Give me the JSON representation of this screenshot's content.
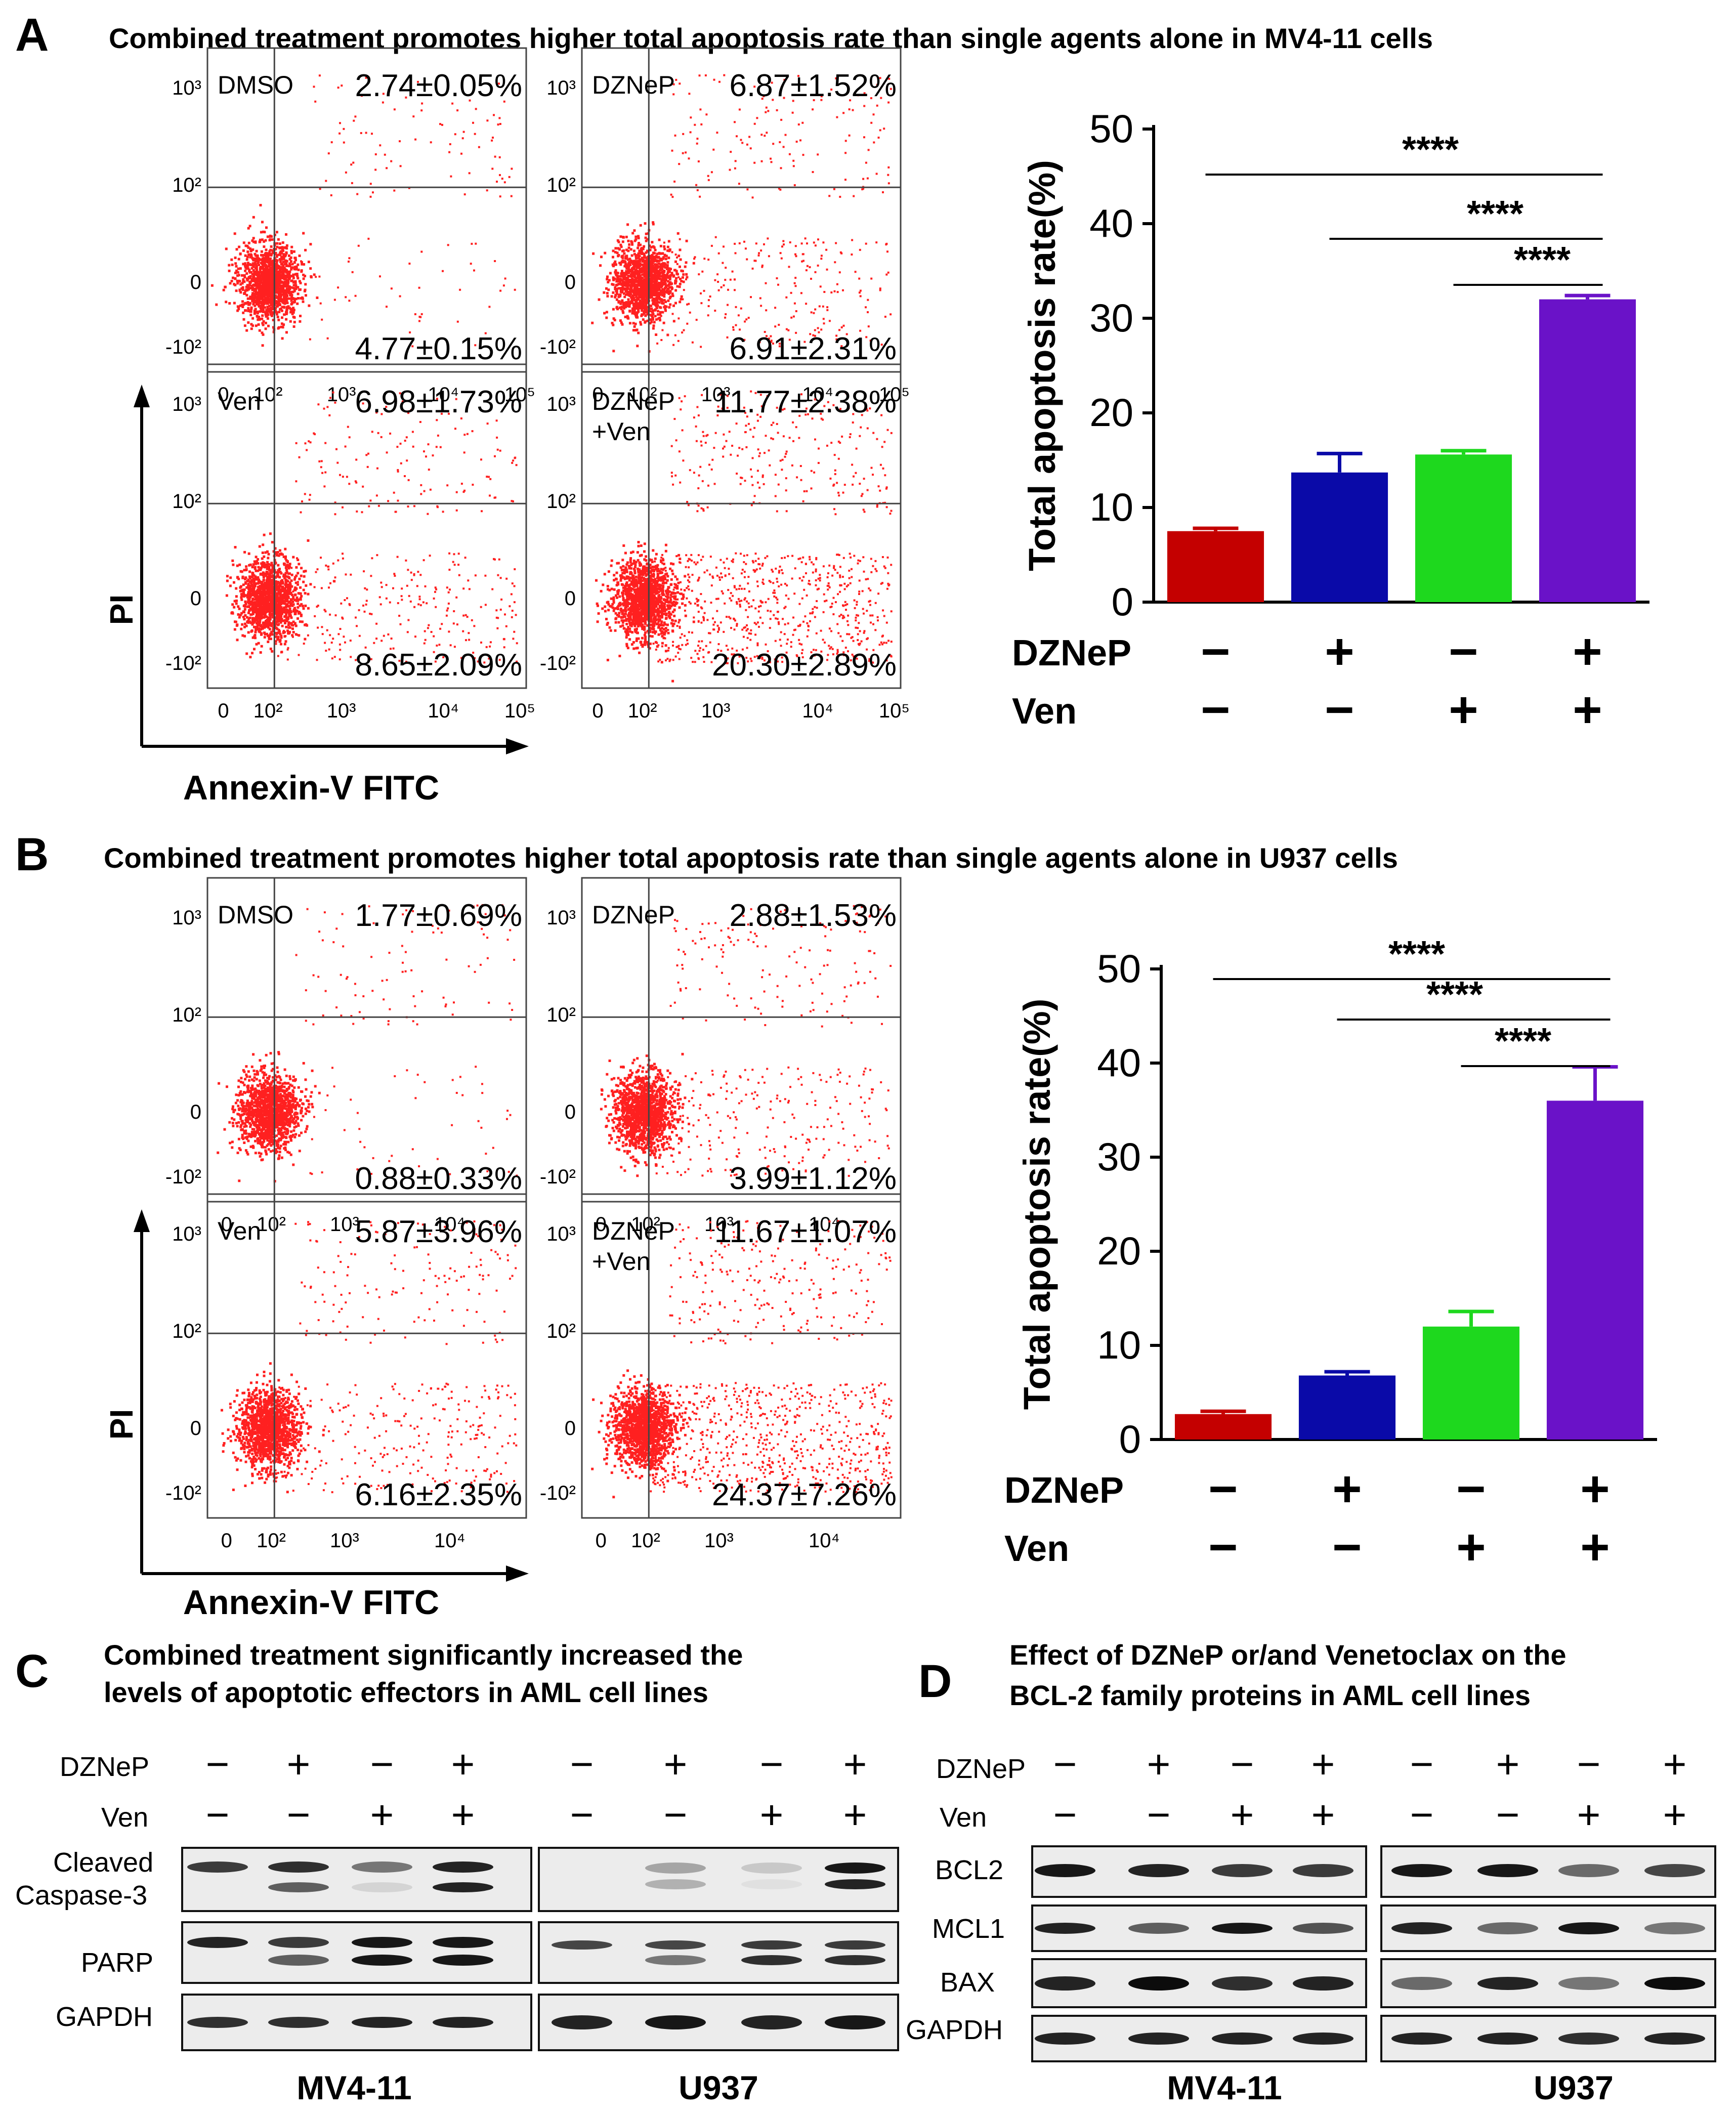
{
  "panel_a": {
    "letter": "A",
    "title": "Combined treatment promotes higher total apoptosis rate than single agents alone in MV4-11 cells",
    "flow": {
      "y_axis_label": "PI",
      "x_axis_label": "Annexin-V FITC",
      "y_ticks": [
        "10³",
        "10²",
        "0",
        "-10²"
      ],
      "x_ticks": [
        "0",
        "10²",
        "10³",
        "10⁴",
        "10⁵"
      ],
      "plots": [
        {
          "label": "DMSO",
          "label2": "",
          "upper_right": "2.74±0.05%",
          "lower_right": "4.77±0.15%"
        },
        {
          "label": "DZNeP",
          "label2": "",
          "upper_right": "6.87±1.52%",
          "lower_right": "6.91±2.31%"
        },
        {
          "label": "Ven",
          "label2": "",
          "upper_right": "6.98±1.73%",
          "lower_right": "8.65±2.09%"
        },
        {
          "label": "DZNeP",
          "label2": "+Ven",
          "upper_right": "11.77±2.38%",
          "lower_right": "20.30±2.89%"
        }
      ]
    }
  },
  "panel_b": {
    "letter": "B",
    "title": "Combined treatment promotes higher total apoptosis rate than single agents alone in U937 cells",
    "flow": {
      "y_axis_label": "PI",
      "x_axis_label": "Annexin-V FITC",
      "y_ticks": [
        "10³",
        "10²",
        "0",
        "-10²"
      ],
      "x_ticks": [
        "0",
        "10²",
        "10³",
        "10⁴"
      ],
      "plots": [
        {
          "label": "DMSO",
          "label2": "",
          "upper_right": "1.77±0.69%",
          "lower_right": "0.88±0.33%"
        },
        {
          "label": "DZNeP",
          "label2": "",
          "upper_right": "2.88±1.53%",
          "lower_right": "3.99±1.12%"
        },
        {
          "label": "Ven",
          "label2": "",
          "upper_right": "5.87±3.96%",
          "lower_right": "6.16±2.35%"
        },
        {
          "label": "DZNeP",
          "label2": "+Ven",
          "upper_right": "11.67±1.07%",
          "lower_right": "24.37±7.26%"
        }
      ]
    }
  },
  "chart_data": [
    {
      "type": "bar",
      "title": "",
      "ylabel": "Total apoptosis rate(%)",
      "ylim": [
        0,
        50
      ],
      "yticks": [
        "0",
        "10",
        "20",
        "30",
        "40",
        "50"
      ],
      "categories": [
        "DMSO",
        "DZNeP",
        "Ven",
        "DZNeP+Ven"
      ],
      "values": [
        7.5,
        13.7,
        15.6,
        32.0
      ],
      "errors": [
        0.3,
        2.0,
        0.4,
        0.4
      ],
      "colors": [
        "#c40000",
        "#0a0aa8",
        "#1ed81e",
        "#6a12c8"
      ],
      "significance": [
        "****",
        "****",
        "****"
      ],
      "treatment_rows": [
        {
          "label": "DZNeP",
          "signs": [
            "−",
            "+",
            "−",
            "+"
          ]
        },
        {
          "label": "Ven",
          "signs": [
            "−",
            "−",
            "+",
            "+"
          ]
        }
      ]
    },
    {
      "type": "bar",
      "title": "",
      "ylabel": "Total apoptosis rate(%)",
      "ylim": [
        0,
        50
      ],
      "yticks": [
        "0",
        "10",
        "20",
        "30",
        "40",
        "50"
      ],
      "categories": [
        "DMSO",
        "DZNeP",
        "Ven",
        "DZNeP+Ven"
      ],
      "values": [
        2.7,
        6.8,
        12.0,
        36.0
      ],
      "errors": [
        0.3,
        0.4,
        1.6,
        3.6
      ],
      "colors": [
        "#c40000",
        "#0a0aa8",
        "#1ed81e",
        "#6a12c8"
      ],
      "significance": [
        "****",
        "****",
        "****"
      ],
      "treatment_rows": [
        {
          "label": "DZNeP",
          "signs": [
            "−",
            "+",
            "−",
            "+"
          ]
        },
        {
          "label": "Ven",
          "signs": [
            "−",
            "−",
            "+",
            "+"
          ]
        }
      ]
    }
  ],
  "panel_c": {
    "letter": "C",
    "title_line1": "Combined treatment significantly increased the",
    "title_line2": "levels of apoptotic effectors in AML cell lines",
    "treatments": [
      {
        "label": "DZNeP",
        "signs": [
          "−",
          "+",
          "−",
          "+"
        ]
      },
      {
        "label": "Ven",
        "signs": [
          "−",
          "−",
          "+",
          "+"
        ]
      }
    ],
    "bands": [
      "Cleaved",
      "Caspase-3",
      "PARP",
      "GAPDH"
    ],
    "cell_lines": [
      "MV4-11",
      "U937"
    ]
  },
  "panel_d": {
    "letter": "D",
    "title_line1": "Effect of DZNeP or/and Venetoclax on the",
    "title_line2": "BCL-2 family proteins in AML cell lines",
    "treatments": [
      {
        "label": "DZNeP",
        "signs": [
          "−",
          "+",
          "−",
          "+"
        ]
      },
      {
        "label": "Ven",
        "signs": [
          "−",
          "−",
          "+",
          "+"
        ]
      }
    ],
    "bands": [
      "BCL2",
      "MCL1",
      "BAX",
      "GAPDH"
    ],
    "cell_lines": [
      "MV4-11",
      "U937"
    ]
  }
}
